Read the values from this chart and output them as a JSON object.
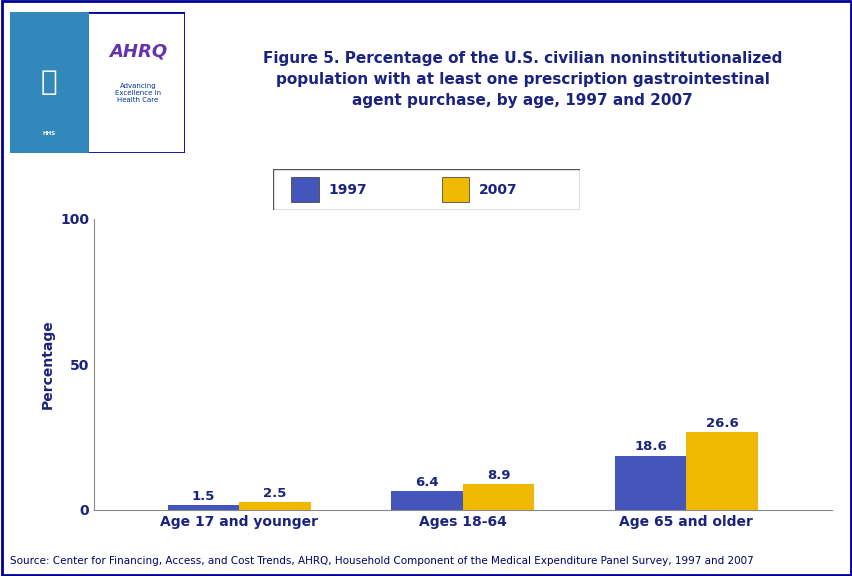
{
  "title": "Figure 5. Percentage of the U.S. civilian noninstitutionalized\npopulation with at least one prescription gastrointestinal\nagent purchase, by age, 1997 and 2007",
  "categories": [
    "Age 17 and younger",
    "Ages 18-64",
    "Age 65 and older"
  ],
  "values_1997": [
    1.5,
    6.4,
    18.6
  ],
  "values_2007": [
    2.5,
    8.9,
    26.6
  ],
  "color_1997": "#4455bb",
  "color_2007": "#f0b800",
  "ylabel": "Percentage",
  "ylim": [
    0,
    100
  ],
  "yticks": [
    0,
    50,
    100
  ],
  "legend_labels": [
    "1997",
    "2007"
  ],
  "bar_width": 0.32,
  "source_text": "Source: Center for Financing, Access, and Cost Trends, AHRQ, Household Component of the Medical Expenditure Panel Survey, 1997 and 2007",
  "bg_color": "#ffffff",
  "title_color": "#1a237e",
  "tick_label_color": "#1a237e",
  "bar_label_color": "#1a237e",
  "divider_color": "#00008b",
  "source_color": "#000066",
  "outer_border_color": "#000099",
  "title_fontsize": 11,
  "ylabel_fontsize": 10,
  "tick_fontsize": 10,
  "bar_label_fontsize": 9.5,
  "source_fontsize": 7.5,
  "legend_fontsize": 10
}
